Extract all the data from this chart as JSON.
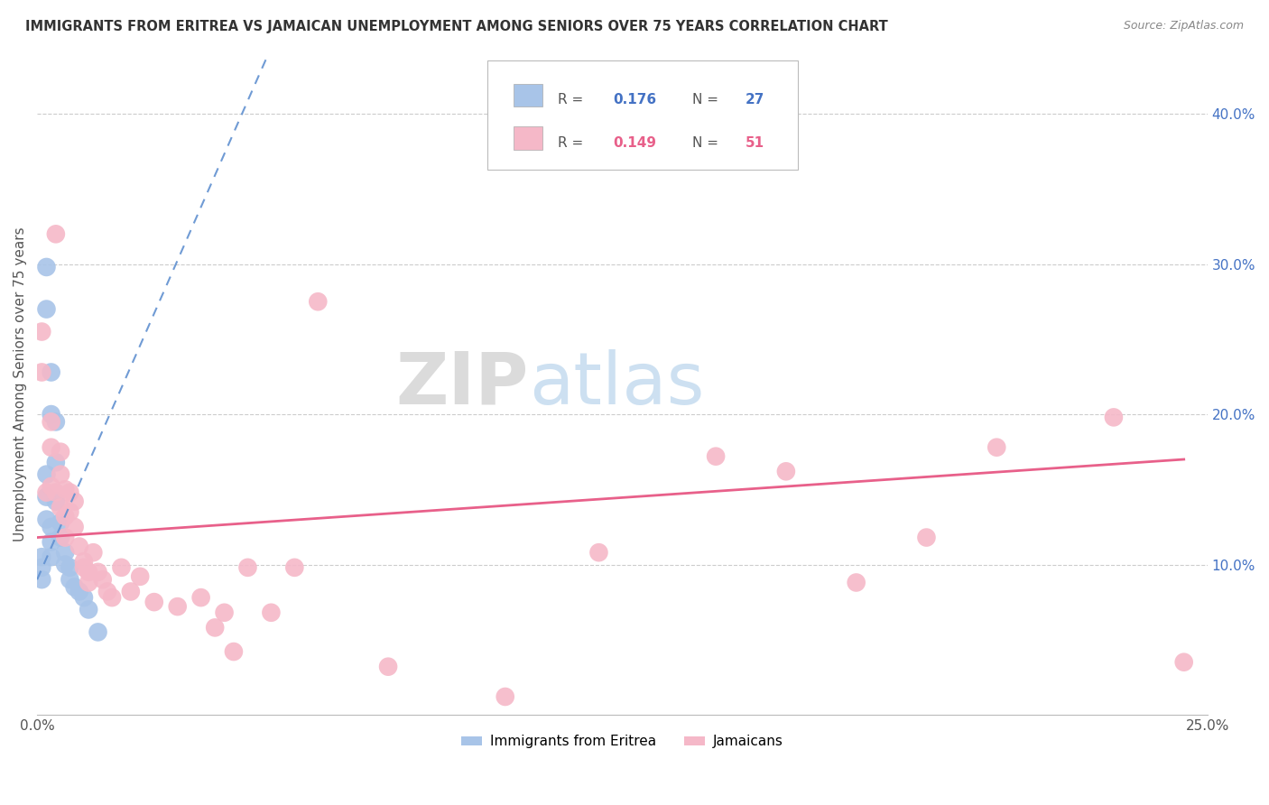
{
  "title": "IMMIGRANTS FROM ERITREA VS JAMAICAN UNEMPLOYMENT AMONG SENIORS OVER 75 YEARS CORRELATION CHART",
  "source": "Source: ZipAtlas.com",
  "ylabel": "Unemployment Among Seniors over 75 years",
  "xlim": [
    0.0,
    0.25
  ],
  "ylim": [
    0.0,
    0.44
  ],
  "xticks": [
    0.0,
    0.05,
    0.1,
    0.15,
    0.2,
    0.25
  ],
  "xticklabels": [
    "0.0%",
    "",
    "",
    "",
    "",
    "25.0%"
  ],
  "yticks_right": [
    0.1,
    0.2,
    0.3,
    0.4
  ],
  "ytick_right_labels": [
    "10.0%",
    "20.0%",
    "30.0%",
    "40.0%"
  ],
  "legend_labels": [
    "Immigrants from Eritrea",
    "Jamaicans"
  ],
  "legend_R": [
    0.176,
    0.149
  ],
  "legend_N": [
    27,
    51
  ],
  "blue_color": "#a8c4e8",
  "pink_color": "#f5b8c8",
  "blue_line_color": "#6090d0",
  "pink_line_color": "#e8608a",
  "watermark_zip": "ZIP",
  "watermark_atlas": "atlas",
  "blue_x": [
    0.001,
    0.001,
    0.001,
    0.002,
    0.002,
    0.002,
    0.002,
    0.002,
    0.003,
    0.003,
    0.003,
    0.003,
    0.003,
    0.004,
    0.004,
    0.004,
    0.005,
    0.005,
    0.006,
    0.006,
    0.007,
    0.007,
    0.008,
    0.009,
    0.01,
    0.011,
    0.013
  ],
  "blue_y": [
    0.105,
    0.098,
    0.09,
    0.298,
    0.27,
    0.16,
    0.145,
    0.13,
    0.228,
    0.2,
    0.125,
    0.115,
    0.105,
    0.195,
    0.168,
    0.142,
    0.128,
    0.118,
    0.108,
    0.1,
    0.098,
    0.09,
    0.085,
    0.082,
    0.078,
    0.07,
    0.055
  ],
  "pink_x": [
    0.001,
    0.001,
    0.002,
    0.003,
    0.003,
    0.003,
    0.004,
    0.004,
    0.005,
    0.005,
    0.005,
    0.006,
    0.006,
    0.006,
    0.007,
    0.007,
    0.008,
    0.008,
    0.009,
    0.01,
    0.01,
    0.011,
    0.011,
    0.012,
    0.013,
    0.014,
    0.015,
    0.016,
    0.018,
    0.02,
    0.022,
    0.025,
    0.03,
    0.035,
    0.038,
    0.04,
    0.042,
    0.045,
    0.05,
    0.055,
    0.06,
    0.075,
    0.1,
    0.12,
    0.145,
    0.16,
    0.175,
    0.19,
    0.205,
    0.23,
    0.245
  ],
  "pink_y": [
    0.255,
    0.228,
    0.148,
    0.195,
    0.178,
    0.152,
    0.32,
    0.148,
    0.175,
    0.16,
    0.138,
    0.15,
    0.132,
    0.118,
    0.148,
    0.135,
    0.142,
    0.125,
    0.112,
    0.102,
    0.098,
    0.095,
    0.088,
    0.108,
    0.095,
    0.09,
    0.082,
    0.078,
    0.098,
    0.082,
    0.092,
    0.075,
    0.072,
    0.078,
    0.058,
    0.068,
    0.042,
    0.098,
    0.068,
    0.098,
    0.275,
    0.032,
    0.012,
    0.108,
    0.172,
    0.162,
    0.088,
    0.118,
    0.178,
    0.198,
    0.035
  ],
  "blue_line_x0": 0.0,
  "blue_line_y0": 0.09,
  "blue_line_x1": 0.012,
  "blue_line_y1": 0.175,
  "pink_line_x0": 0.0,
  "pink_line_y0": 0.118,
  "pink_line_x1": 0.245,
  "pink_line_y1": 0.17
}
